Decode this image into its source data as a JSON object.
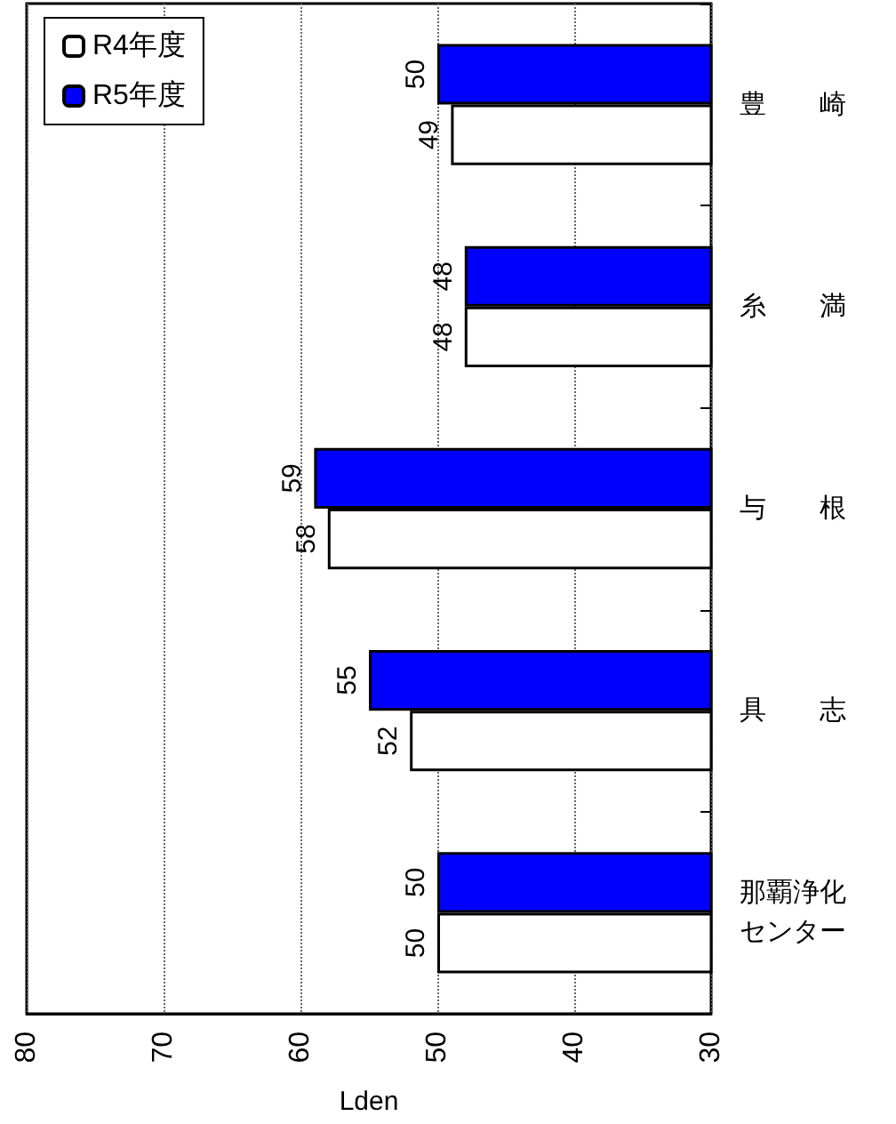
{
  "chart_data": {
    "type": "bar",
    "orientation": "horizontal",
    "xlabel": "Lden",
    "categories": [
      "豊崎",
      "糸満",
      "与根",
      "具志",
      "那覇浄化センター"
    ],
    "series": [
      {
        "name": "R4年度",
        "color": "#ffffff",
        "values": [
          49,
          48,
          58,
          52,
          50
        ]
      },
      {
        "name": "R5年度",
        "color": "#0000ff",
        "values": [
          50,
          48,
          59,
          55,
          50
        ]
      }
    ],
    "xlim": [
      80,
      30
    ],
    "xticks": [
      80,
      70,
      60,
      50,
      40,
      30
    ],
    "grid": "x",
    "legend": "top left",
    "data_labels": true
  }
}
